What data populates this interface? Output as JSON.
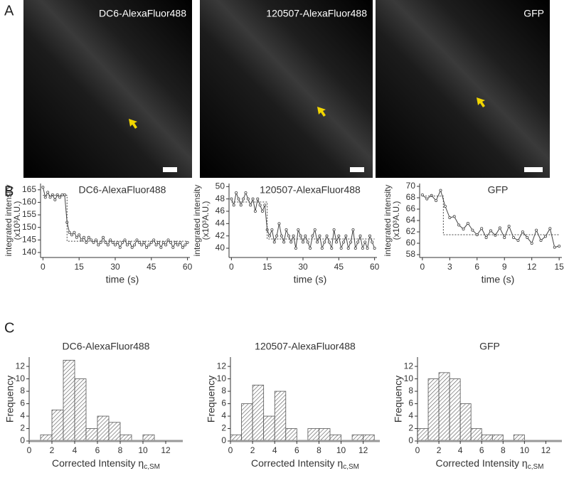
{
  "panel_labels": [
    "A",
    "B",
    "C"
  ],
  "images": [
    "DC6-AlexaFluor488",
    "120507-AlexaFluor488",
    "GFP"
  ],
  "chart_data": [
    {
      "type": "line",
      "title": "DC6-AlexaFluor488",
      "xlabel": "time (s)",
      "ylabel": [
        "integrated intensity",
        "(x10³A.U.)"
      ],
      "xlim": [
        -1,
        61
      ],
      "xticks": [
        0,
        15,
        30,
        45,
        60
      ],
      "ylim": [
        138,
        167.5
      ],
      "yticks": [
        140,
        145,
        150,
        155,
        160,
        165
      ],
      "series": [
        {
          "color": "#444444",
          "x": [
            0,
            1,
            2,
            3,
            4,
            5,
            6,
            7,
            8,
            9,
            10,
            11,
            12,
            13,
            14,
            15,
            16,
            17,
            18,
            19,
            20,
            21,
            22,
            23,
            24,
            25,
            26,
            27,
            28,
            29,
            30,
            31,
            32,
            33,
            34,
            35,
            36,
            37,
            38,
            39,
            40,
            41,
            42,
            43,
            44,
            45,
            46,
            47,
            48,
            49,
            50,
            51,
            52,
            53,
            54,
            55,
            56,
            57,
            58,
            59,
            60
          ],
          "values": [
            166,
            162,
            164,
            162,
            163,
            161,
            163,
            162,
            163,
            163,
            152,
            148,
            147,
            148,
            146,
            147,
            145,
            146,
            144,
            146,
            145,
            144,
            145,
            143,
            144,
            146,
            144,
            143,
            145,
            144,
            143,
            144,
            142,
            144,
            145,
            143,
            144,
            142,
            143,
            145,
            144,
            143,
            144,
            142,
            143,
            144,
            145,
            143,
            144,
            142,
            144,
            143,
            145,
            144,
            142,
            144,
            143,
            144,
            142,
            143,
            144
          ]
        },
        {
          "color": "#444444",
          "x": [
            0,
            10,
            10,
            60
          ],
          "values": [
            162.8,
            162.8,
            144.5,
            144.5
          ]
        }
      ]
    },
    {
      "type": "line",
      "title": "120507-AlexaFluor488",
      "xlabel": "time (s)",
      "ylabel": [
        "integrated intensity",
        "(x10³A.U.)"
      ],
      "xlim": [
        -1,
        61
      ],
      "xticks": [
        0,
        15,
        30,
        45,
        60
      ],
      "ylim": [
        38.5,
        50.5
      ],
      "yticks": [
        40,
        42,
        44,
        46,
        48,
        50
      ],
      "series": [
        {
          "color": "#444444",
          "x": [
            0,
            1,
            2,
            3,
            4,
            5,
            6,
            7,
            8,
            9,
            10,
            11,
            12,
            13,
            14,
            15,
            16,
            17,
            18,
            19,
            20,
            21,
            22,
            23,
            24,
            25,
            26,
            27,
            28,
            29,
            30,
            31,
            32,
            33,
            34,
            35,
            36,
            37,
            38,
            39,
            40,
            41,
            42,
            43,
            44,
            45,
            46,
            47,
            48,
            49,
            50,
            51,
            52,
            53,
            54,
            55,
            56,
            57,
            58,
            59,
            60
          ],
          "values": [
            48,
            47,
            49,
            48,
            47,
            48,
            49,
            48,
            47,
            48,
            46,
            48,
            47,
            46,
            47,
            43,
            42,
            43,
            41,
            42,
            44,
            42,
            41,
            43,
            42,
            41,
            42,
            40,
            43,
            42,
            41,
            42,
            41,
            40,
            42,
            43,
            41,
            42,
            40,
            41,
            42,
            41,
            40,
            43,
            41,
            42,
            40,
            41,
            42,
            40,
            41,
            43,
            40,
            41,
            42,
            40,
            41,
            40,
            42,
            41,
            40
          ]
        },
        {
          "color": "#444444",
          "x": [
            0,
            15,
            15,
            60
          ],
          "values": [
            47.5,
            47.5,
            41.5,
            41.5
          ]
        }
      ]
    },
    {
      "type": "line",
      "title": "GFP",
      "xlabel": "time (s)",
      "ylabel": [
        "integrated intensity",
        "(x10³A.U.)"
      ],
      "xlim": [
        -0.3,
        15.3
      ],
      "xticks": [
        0,
        3,
        6,
        9,
        12,
        15
      ],
      "ylim": [
        57.5,
        70.5
      ],
      "yticks": [
        58,
        60,
        62,
        64,
        66,
        68,
        70
      ],
      "series": [
        {
          "color": "#444444",
          "x": [
            0,
            0.5,
            1,
            1.5,
            2,
            2.5,
            3,
            3.5,
            4,
            4.5,
            5,
            5.5,
            6,
            6.5,
            7,
            7.5,
            8,
            8.5,
            9,
            9.5,
            10,
            10.5,
            11,
            11.5,
            12,
            12.5,
            13,
            13.5,
            14,
            14.5,
            15
          ],
          "values": [
            68.5,
            67.8,
            68.4,
            67.5,
            69.3,
            66.5,
            64.5,
            64.7,
            63.2,
            62.5,
            63.5,
            62.3,
            61.5,
            62.6,
            61,
            62.2,
            61.4,
            62.7,
            61,
            63,
            61,
            60.5,
            62,
            61,
            60,
            62.3,
            60.5,
            61.2,
            62.6,
            59.3,
            59.5
          ]
        },
        {
          "color": "#444444",
          "x": [
            0,
            2.3,
            2.3,
            15
          ],
          "values": [
            68.3,
            68.3,
            61.5,
            61.5
          ]
        }
      ]
    },
    {
      "type": "histogram",
      "title": "DC6-AlexaFluor488",
      "xlabel": "Corrected Intensity η",
      "xlabel_sub": "c,SM",
      "ylabel": "Frequency",
      "bins": [
        0,
        1,
        2,
        3,
        4,
        5,
        6,
        7,
        8,
        9,
        10,
        11,
        12,
        13
      ],
      "values": [
        0,
        1,
        5,
        13,
        10,
        2,
        4,
        3,
        1,
        0,
        1,
        0,
        0
      ],
      "xlim": [
        0,
        13.5
      ],
      "xticks": [
        0,
        2,
        4,
        6,
        8,
        10,
        12
      ],
      "ylim": [
        0,
        13.5
      ],
      "yticks": [
        0,
        2,
        4,
        6,
        8,
        10,
        12
      ]
    },
    {
      "type": "histogram",
      "title": "120507-AlexaFluor488",
      "xlabel": "Corrected Intensity η",
      "xlabel_sub": "c,SM",
      "ylabel": "Frequency",
      "bins": [
        0,
        1,
        2,
        3,
        4,
        5,
        6,
        7,
        8,
        9,
        10,
        11,
        12,
        13
      ],
      "values": [
        1,
        6,
        9,
        4,
        8,
        2,
        0,
        2,
        2,
        1,
        0,
        1,
        1
      ],
      "xlim": [
        0,
        13.5
      ],
      "xticks": [
        0,
        2,
        4,
        6,
        8,
        10,
        12
      ],
      "ylim": [
        0,
        13.5
      ],
      "yticks": [
        0,
        2,
        4,
        6,
        8,
        10,
        12
      ]
    },
    {
      "type": "histogram",
      "title": "GFP",
      "xlabel": "Corrected Intensity η",
      "xlabel_sub": "c,SM",
      "ylabel": "Frequency",
      "bins": [
        0,
        1,
        2,
        3,
        4,
        5,
        6,
        7,
        8,
        9,
        10,
        11,
        12,
        13
      ],
      "values": [
        2,
        10,
        11,
        10,
        6,
        2,
        1,
        1,
        0,
        1,
        0,
        0,
        0
      ],
      "xlim": [
        0,
        13.5
      ],
      "xticks": [
        0,
        2,
        4,
        6,
        8,
        10,
        12
      ],
      "ylim": [
        0,
        13.5
      ],
      "yticks": [
        0,
        2,
        4,
        6,
        8,
        10,
        12
      ]
    }
  ]
}
